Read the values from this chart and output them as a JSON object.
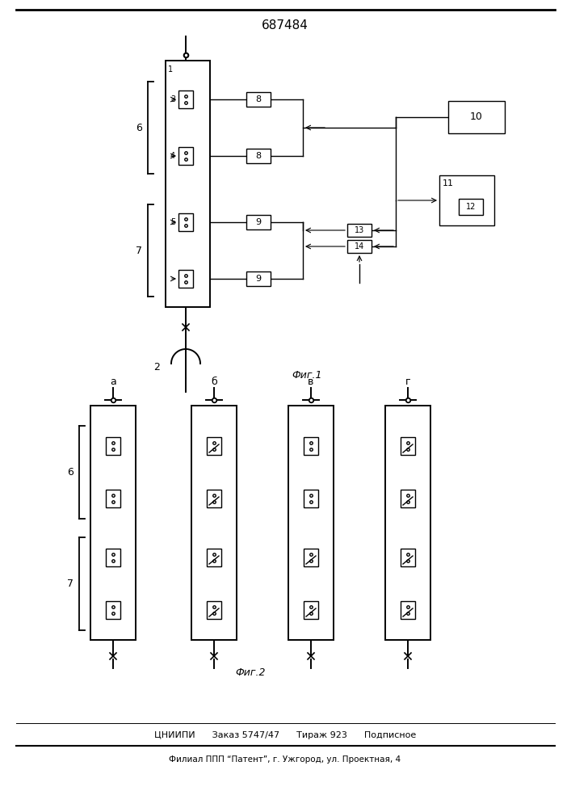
{
  "title": "687484",
  "fig1_label": "Фиг.1",
  "fig2_label": "Фиг.2",
  "bottom_line1": "ЦНИИПИ      Заказ 5747/47      Тираж 923      Подписное",
  "bottom_line2": "Филиал ППП “Патент”, г. Ужгород, ул. Проектная, 4",
  "label_6": "6",
  "label_7": "7",
  "fig2_labels_top": [
    "а",
    "б",
    "в",
    "г"
  ],
  "fig2_label_6": "6",
  "fig2_label_7": "7"
}
